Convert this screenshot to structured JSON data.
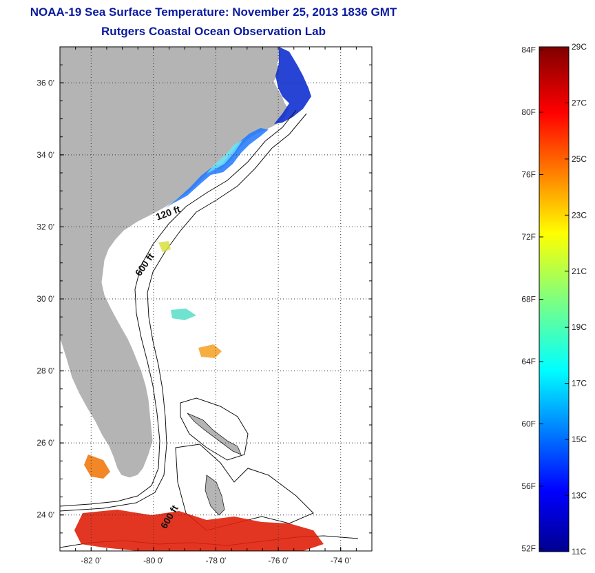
{
  "title": {
    "line1": "NOAA-19 Sea Surface Temperature:  November 25, 2013 1836 GMT",
    "line2": "Rutgers Coastal Ocean Observation Lab"
  },
  "map": {
    "lon_range": [
      -83,
      -73
    ],
    "lat_range": [
      23,
      37
    ],
    "x_ticks": [
      {
        "lon": -82,
        "label": "-82 0'"
      },
      {
        "lon": -80,
        "label": "-80 0'"
      },
      {
        "lon": -78,
        "label": "-78 0'"
      },
      {
        "lon": -76,
        "label": "-76 0'"
      },
      {
        "lon": -74,
        "label": "-74 0'"
      }
    ],
    "y_ticks": [
      {
        "lat": 36,
        "label": "36 0'"
      },
      {
        "lat": 34,
        "label": "34 0'"
      },
      {
        "lat": 32,
        "label": "32 0'"
      },
      {
        "lat": 30,
        "label": "30 0'"
      },
      {
        "lat": 28,
        "label": "28 0'"
      },
      {
        "lat": 26,
        "label": "26 0'"
      },
      {
        "lat": 24,
        "label": "24 0'"
      }
    ],
    "grid": "dotted",
    "land_color": "#b4b4b4",
    "isobath_labels": [
      {
        "text": "120 ft",
        "lon": -79.5,
        "lat": 32.3
      },
      {
        "text": "600 ft",
        "lon": -80.2,
        "lat": 30.9
      },
      {
        "text": "600 ft",
        "lon": -79.4,
        "lat": 23.9
      }
    ]
  },
  "colorbar": {
    "min_c": 11,
    "max_c": 29,
    "colormap": "jet",
    "fahrenheit_labels": [
      {
        "value": 84,
        "text": "84F"
      },
      {
        "value": 80,
        "text": "80F"
      },
      {
        "value": 76,
        "text": "76F"
      },
      {
        "value": 72,
        "text": "72F"
      },
      {
        "value": 68,
        "text": "68F"
      },
      {
        "value": 64,
        "text": "64F"
      },
      {
        "value": 60,
        "text": "60F"
      },
      {
        "value": 56,
        "text": "56F"
      },
      {
        "value": 52,
        "text": "52F"
      }
    ],
    "celsius_labels": [
      {
        "value": 29,
        "text": "29C"
      },
      {
        "value": 27,
        "text": "27C"
      },
      {
        "value": 25,
        "text": "25C"
      },
      {
        "value": 23,
        "text": "23C"
      },
      {
        "value": 21,
        "text": "21C"
      },
      {
        "value": 19,
        "text": "19C"
      },
      {
        "value": 17,
        "text": "17C"
      },
      {
        "value": 15,
        "text": "15C"
      },
      {
        "value": 13,
        "text": "13C"
      },
      {
        "value": 11,
        "text": "11C"
      }
    ]
  }
}
